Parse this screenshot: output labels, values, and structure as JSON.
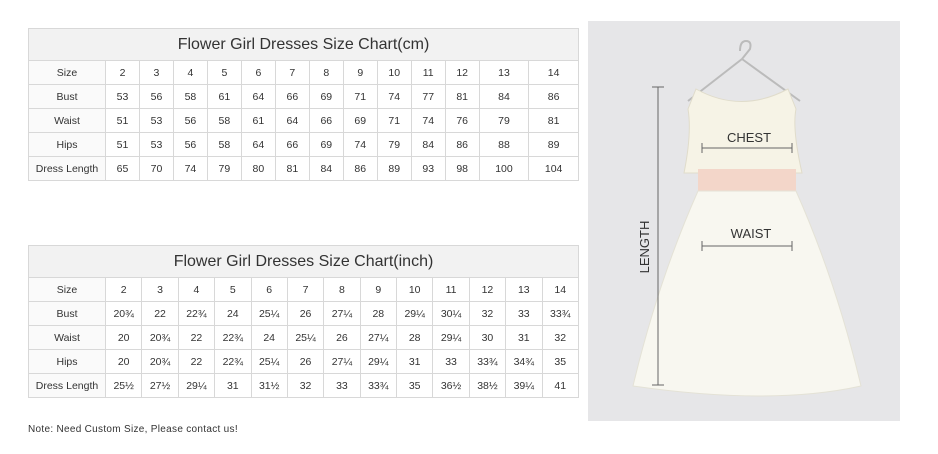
{
  "cm_chart": {
    "title": "Flower Girl Dresses Size Chart(cm)",
    "rows": [
      {
        "label": "Size",
        "values": [
          "2",
          "3",
          "4",
          "5",
          "6",
          "7",
          "8",
          "9",
          "10",
          "11",
          "12",
          "13",
          "14"
        ]
      },
      {
        "label": "Bust",
        "values": [
          "53",
          "56",
          "58",
          "61",
          "64",
          "66",
          "69",
          "71",
          "74",
          "77",
          "81",
          "84",
          "86"
        ]
      },
      {
        "label": "Waist",
        "values": [
          "51",
          "53",
          "56",
          "58",
          "61",
          "64",
          "66",
          "69",
          "71",
          "74",
          "76",
          "79",
          "81"
        ]
      },
      {
        "label": "Hips",
        "values": [
          "51",
          "53",
          "56",
          "58",
          "64",
          "66",
          "69",
          "74",
          "79",
          "84",
          "86",
          "88",
          "89"
        ]
      },
      {
        "label": "Dress Length",
        "values": [
          "65",
          "70",
          "74",
          "79",
          "80",
          "81",
          "84",
          "86",
          "89",
          "93",
          "98",
          "100",
          "104"
        ]
      }
    ]
  },
  "inch_chart": {
    "title": "Flower Girl Dresses Size Chart(inch)",
    "rows": [
      {
        "label": "Size",
        "values": [
          "2",
          "3",
          "4",
          "5",
          "6",
          "7",
          "8",
          "9",
          "10",
          "11",
          "12",
          "13",
          "14"
        ]
      },
      {
        "label": "Bust",
        "values": [
          "20¾",
          "22",
          "22¾",
          "24",
          "25¼",
          "26",
          "27¼",
          "28",
          "29¼",
          "30¼",
          "32",
          "33",
          "33¾"
        ]
      },
      {
        "label": "Waist",
        "values": [
          "20",
          "20¾",
          "22",
          "22¾",
          "24",
          "25¼",
          "26",
          "27¼",
          "28",
          "29¼",
          "30",
          "31",
          "32"
        ]
      },
      {
        "label": "Hips",
        "values": [
          "20",
          "20¾",
          "22",
          "22¾",
          "25¼",
          "26",
          "27¼",
          "29¼",
          "31",
          "33",
          "33¾",
          "34¾",
          "35"
        ]
      },
      {
        "label": "Dress Length",
        "values": [
          "25½",
          "27½",
          "29¼",
          "31",
          "31½",
          "32",
          "33",
          "33¾",
          "35",
          "36½",
          "38½",
          "39¼",
          "41"
        ]
      }
    ]
  },
  "note": "Note: Need Custom Size, Please contact us!",
  "diagram": {
    "chest": "CHEST",
    "waist": "WAIST",
    "length": "LENGTH"
  }
}
